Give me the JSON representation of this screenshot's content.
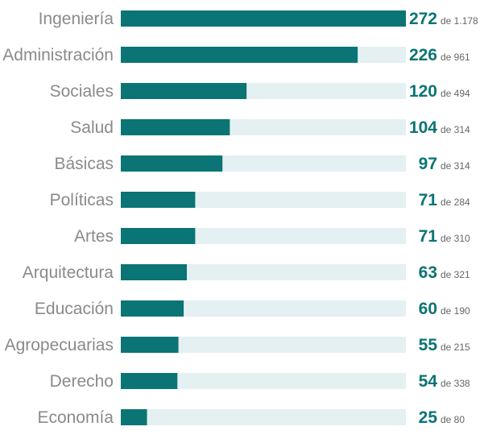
{
  "chart_data": {
    "type": "bar",
    "orientation": "horizontal",
    "title": "",
    "xlabel": "",
    "ylabel": "",
    "categories": [
      "Ingeniería",
      "Administración",
      "Sociales",
      "Salud",
      "Básicas",
      "Políticas",
      "Artes",
      "Arquitectura",
      "Educación",
      "Agropecuarias",
      "Derecho",
      "Economía"
    ],
    "values": [
      272,
      226,
      120,
      104,
      97,
      71,
      71,
      63,
      60,
      55,
      54,
      25
    ],
    "values_text": [
      "272",
      "226",
      "120",
      "104",
      "97",
      "71",
      "71",
      "63",
      "60",
      "55",
      "54",
      "25"
    ],
    "totals": [
      1178,
      961,
      494,
      314,
      314,
      284,
      310,
      321,
      190,
      215,
      338,
      80
    ],
    "totals_text": [
      "de 1.178",
      "de 961",
      "de 494",
      "de 314",
      "de 314",
      "de 284",
      "de 310",
      "de 321",
      "de 190",
      "de 215",
      "de 338",
      "de 80"
    ],
    "xlim": [
      0,
      272
    ],
    "grid": false,
    "legend": "none"
  },
  "colors": {
    "bar": "#0b7474",
    "track": "#e4f0f2",
    "category_text": "#8a8a8a",
    "value_text": "#0b7474",
    "total_text": "#666666"
  }
}
